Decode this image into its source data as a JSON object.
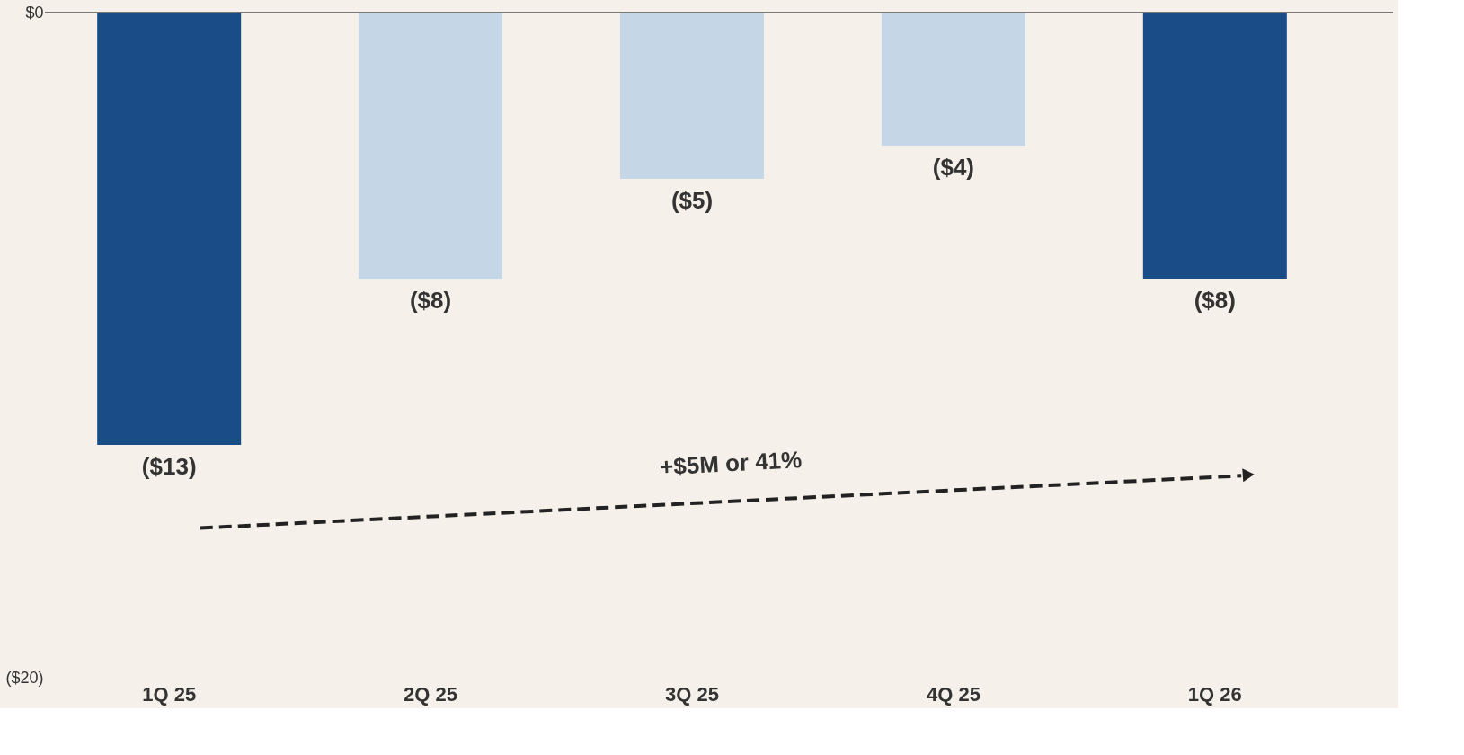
{
  "chart_data": {
    "type": "bar",
    "categories": [
      "1Q 25",
      "2Q 25",
      "3Q 25",
      "4Q 25",
      "1Q 26"
    ],
    "values": [
      -13,
      -8,
      -5,
      -4,
      -8
    ],
    "value_labels": [
      "($13)",
      "($8)",
      "($5)",
      "($4)",
      "($8)"
    ],
    "colors": [
      "#1a4d87",
      "#c5d7e6",
      "#c5d7e6",
      "#c5d7e6",
      "#1a4d87"
    ],
    "ylim": [
      -20,
      0
    ],
    "yticks": [
      {
        "value": -20,
        "label": "($20)"
      },
      {
        "value": 0,
        "label": "$0"
      }
    ],
    "annotations": [
      "+$5M or 41%"
    ],
    "grid": false
  }
}
